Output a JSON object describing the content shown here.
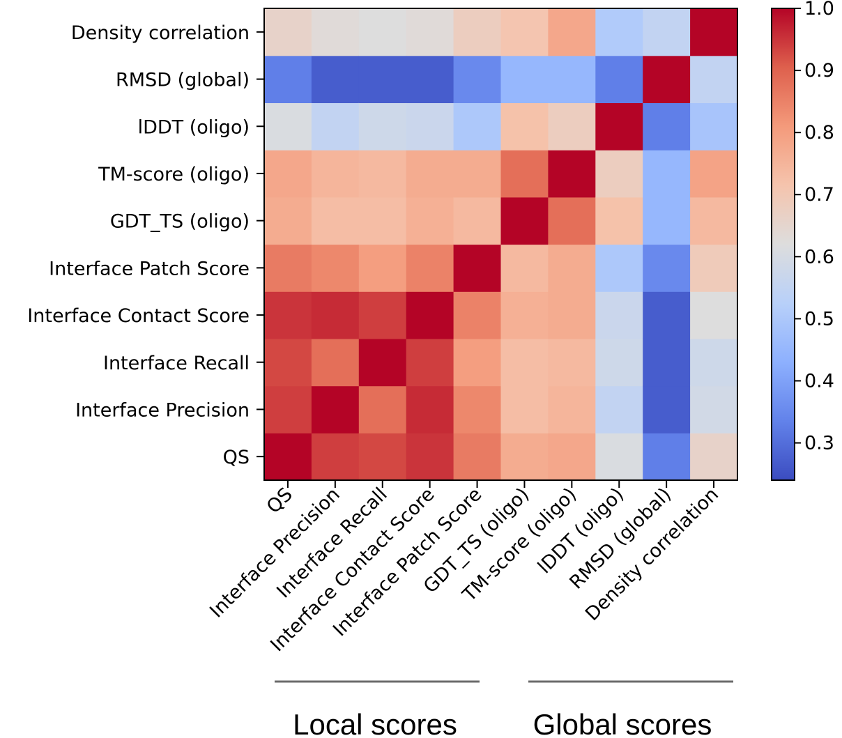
{
  "chart_data": {
    "type": "heatmap",
    "x_labels": [
      "QS",
      "Interface Precision",
      "Interface Recall",
      "Interface Contact Score",
      "Interface Patch Score",
      "GDT_TS (oligo)",
      "TM-score (oligo)",
      "lDDT (oligo)",
      "RMSD (global)",
      "Density correlation"
    ],
    "y_labels_top_to_bottom": [
      "Density correlation",
      "RMSD (global)",
      "lDDT (oligo)",
      "TM-score (oligo)",
      "GDT_TS (oligo)",
      "Interface Patch Score",
      "Interface Contact Score",
      "Interface Recall",
      "Interface Precision",
      "QS"
    ],
    "matrix": [
      [
        1.0,
        0.94,
        0.93,
        0.95,
        0.86,
        0.77,
        0.78,
        0.61,
        0.33,
        0.66
      ],
      [
        0.94,
        1.0,
        0.88,
        0.96,
        0.84,
        0.73,
        0.75,
        0.55,
        0.27,
        0.63
      ],
      [
        0.93,
        0.88,
        1.0,
        0.94,
        0.8,
        0.73,
        0.74,
        0.58,
        0.27,
        0.62
      ],
      [
        0.95,
        0.96,
        0.94,
        1.0,
        0.85,
        0.76,
        0.77,
        0.57,
        0.27,
        0.63
      ],
      [
        0.86,
        0.84,
        0.8,
        0.85,
        1.0,
        0.74,
        0.77,
        0.5,
        0.35,
        0.68
      ],
      [
        0.77,
        0.73,
        0.73,
        0.76,
        0.74,
        1.0,
        0.88,
        0.72,
        0.45,
        0.71
      ],
      [
        0.78,
        0.75,
        0.74,
        0.77,
        0.77,
        0.88,
        1.0,
        0.68,
        0.45,
        0.78
      ],
      [
        0.61,
        0.55,
        0.58,
        0.57,
        0.5,
        0.72,
        0.68,
        1.0,
        0.33,
        0.51
      ],
      [
        0.33,
        0.27,
        0.27,
        0.27,
        0.35,
        0.45,
        0.45,
        0.33,
        1.0,
        0.55
      ],
      [
        0.66,
        0.59,
        0.58,
        0.62,
        0.69,
        0.74,
        0.79,
        0.49,
        0.55,
        1.0
      ]
    ],
    "colormap": "coolwarm",
    "vmin": 0.24,
    "vmax": 1.0,
    "colorbar_ticks": [
      0.3,
      0.4,
      0.5,
      0.6,
      0.7,
      0.8,
      0.9,
      1.0
    ],
    "colorbar_tick_labels": [
      "0.3",
      "0.4",
      "0.5",
      "0.6",
      "0.7",
      "0.8",
      "0.9",
      "1.0"
    ],
    "groups": [
      {
        "label": "Local scores",
        "first_column": 0,
        "last_column": 4
      },
      {
        "label": "Global scores",
        "first_column": 5,
        "last_column": 9
      }
    ]
  }
}
